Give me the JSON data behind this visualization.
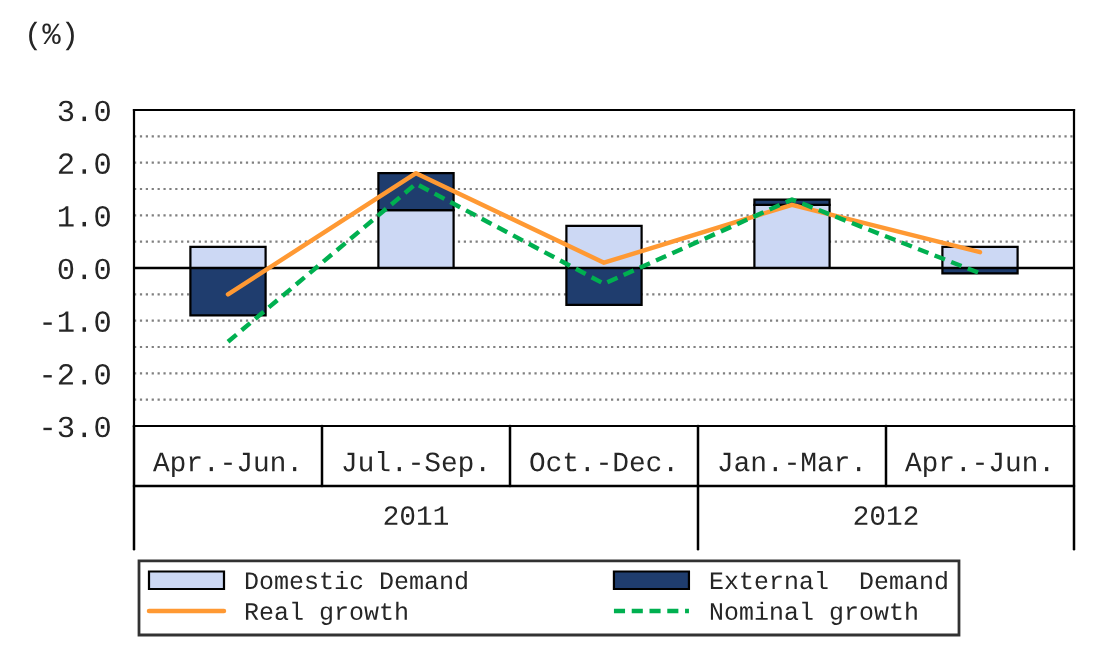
{
  "chart_data": {
    "type": "bar",
    "ylabel": "(%)",
    "categories": [
      "Apr.-Jun.",
      "Jul.-Sep.",
      "Oct.-Dec.",
      "Jan.-Mar.",
      "Apr.-Jun."
    ],
    "stacked": true,
    "series": [
      {
        "name": "Domestic Demand",
        "color": "#ccd8f4",
        "values": [
          0.4,
          1.1,
          0.8,
          1.2,
          0.4
        ]
      },
      {
        "name": "External  Demand",
        "color": "#1f3d6e",
        "values": [
          -0.9,
          0.7,
          -0.7,
          0.1,
          -0.1
        ]
      },
      {
        "name": "Real growth",
        "type": "line",
        "color": "#ff9933",
        "line_style": "solid",
        "values": [
          -0.5,
          1.8,
          0.1,
          1.2,
          0.3
        ]
      },
      {
        "name": "Nominal growth",
        "type": "line",
        "color": "#00b050",
        "line_style": "dashed",
        "values": [
          -1.4,
          1.6,
          -0.3,
          1.3,
          -0.1
        ]
      }
    ],
    "ylim": [
      -3.0,
      3.0
    ],
    "yticks": [
      {
        "value": -3.0,
        "label": "-3.0"
      },
      {
        "value": -2.5,
        "label": null
      },
      {
        "value": -2.0,
        "label": "-2.0"
      },
      {
        "value": -1.5,
        "label": null
      },
      {
        "value": -1.0,
        "label": "-1.0"
      },
      {
        "value": -0.5,
        "label": null
      },
      {
        "value": 0.0,
        "label": "0.0"
      },
      {
        "value": 0.5,
        "label": null
      },
      {
        "value": 1.0,
        "label": "1.0"
      },
      {
        "value": 1.5,
        "label": null
      },
      {
        "value": 2.0,
        "label": "2.0"
      },
      {
        "value": 2.5,
        "label": null
      },
      {
        "value": 3.0,
        "label": "3.0"
      }
    ],
    "grid": "y",
    "legend": "bottom",
    "annotations": [
      "2011",
      "2012"
    ]
  }
}
